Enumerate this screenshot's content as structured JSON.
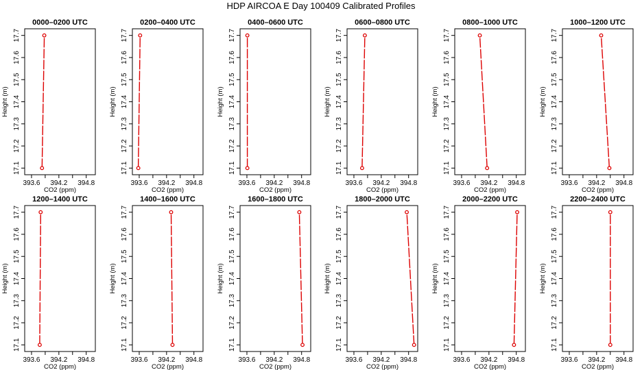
{
  "title": "HDP AIRCOA E  Day 100409  Calibrated Profiles",
  "colors": {
    "profile_line": "#dd0000",
    "marker": "#dd0000",
    "axis": "#000000",
    "background": "#ffffff"
  },
  "chart_data": [
    {
      "type": "line",
      "title": "0000–0200 UTC",
      "xlabel": "CO2 (ppm)",
      "ylabel": "Height (m)",
      "xlim": [
        393.45,
        395.0
      ],
      "ylim": [
        17.07,
        17.73
      ],
      "xticks": [
        393.6,
        393.9,
        394.2,
        394.5,
        394.8
      ],
      "xtick_labels": [
        "393.6",
        "",
        "394.2",
        "",
        "394.8"
      ],
      "yticks": [
        17.1,
        17.2,
        17.3,
        17.4,
        17.5,
        17.6,
        17.7
      ],
      "ytick_labels": [
        "17.1",
        "17.2",
        "17.3",
        "17.4",
        "17.5",
        "17.6",
        "17.7"
      ],
      "series": [
        {
          "x": [
            393.83,
            393.88
          ],
          "y": [
            17.1,
            17.7
          ]
        }
      ]
    },
    {
      "type": "line",
      "title": "0200–0400 UTC",
      "xlabel": "CO2 (ppm)",
      "ylabel": "Height (m)",
      "xlim": [
        393.45,
        395.0
      ],
      "ylim": [
        17.07,
        17.73
      ],
      "xticks": [
        393.6,
        393.9,
        394.2,
        394.5,
        394.8
      ],
      "xtick_labels": [
        "393.6",
        "",
        "394.2",
        "",
        "394.8"
      ],
      "yticks": [
        17.1,
        17.2,
        17.3,
        17.4,
        17.5,
        17.6,
        17.7
      ],
      "ytick_labels": [
        "17.1",
        "17.2",
        "17.3",
        "17.4",
        "17.5",
        "17.6",
        "17.7"
      ],
      "series": [
        {
          "x": [
            393.58,
            393.62
          ],
          "y": [
            17.1,
            17.7
          ]
        }
      ]
    },
    {
      "type": "line",
      "title": "0400–0600 UTC",
      "xlabel": "CO2 (ppm)",
      "ylabel": "Height (m)",
      "xlim": [
        393.45,
        395.0
      ],
      "ylim": [
        17.07,
        17.73
      ],
      "xticks": [
        393.6,
        393.9,
        394.2,
        394.5,
        394.8
      ],
      "xtick_labels": [
        "393.6",
        "",
        "394.2",
        "",
        "394.8"
      ],
      "yticks": [
        17.1,
        17.2,
        17.3,
        17.4,
        17.5,
        17.6,
        17.7
      ],
      "ytick_labels": [
        "17.1",
        "17.2",
        "17.3",
        "17.4",
        "17.5",
        "17.6",
        "17.7"
      ],
      "series": [
        {
          "x": [
            393.61,
            393.61
          ],
          "y": [
            17.1,
            17.7
          ]
        }
      ]
    },
    {
      "type": "line",
      "title": "0600–0800 UTC",
      "xlabel": "CO2 (ppm)",
      "ylabel": "Height (m)",
      "xlim": [
        393.45,
        395.0
      ],
      "ylim": [
        17.07,
        17.73
      ],
      "xticks": [
        393.6,
        393.9,
        394.2,
        394.5,
        394.8
      ],
      "xtick_labels": [
        "393.6",
        "",
        "394.2",
        "",
        "394.8"
      ],
      "yticks": [
        17.1,
        17.2,
        17.3,
        17.4,
        17.5,
        17.6,
        17.7
      ],
      "ytick_labels": [
        "17.1",
        "17.2",
        "17.3",
        "17.4",
        "17.5",
        "17.6",
        "17.7"
      ],
      "series": [
        {
          "x": [
            393.78,
            393.84
          ],
          "y": [
            17.1,
            17.7
          ]
        }
      ]
    },
    {
      "type": "line",
      "title": "0800–1000 UTC",
      "xlabel": "CO2 (ppm)",
      "ylabel": "Height (m)",
      "xlim": [
        393.45,
        395.0
      ],
      "ylim": [
        17.07,
        17.73
      ],
      "xticks": [
        393.6,
        393.9,
        394.2,
        394.5,
        394.8
      ],
      "xtick_labels": [
        "393.6",
        "",
        "394.2",
        "",
        "394.8"
      ],
      "yticks": [
        17.1,
        17.2,
        17.3,
        17.4,
        17.5,
        17.6,
        17.7
      ],
      "ytick_labels": [
        "17.1",
        "17.2",
        "17.3",
        "17.4",
        "17.5",
        "17.6",
        "17.7"
      ],
      "series": [
        {
          "x": [
            394.16,
            394.0
          ],
          "y": [
            17.1,
            17.7
          ]
        }
      ]
    },
    {
      "type": "line",
      "title": "1000–1200 UTC",
      "xlabel": "CO2 (ppm)",
      "ylabel": "Height (m)",
      "xlim": [
        393.45,
        395.0
      ],
      "ylim": [
        17.07,
        17.73
      ],
      "xticks": [
        393.6,
        393.9,
        394.2,
        394.5,
        394.8
      ],
      "xtick_labels": [
        "393.6",
        "",
        "394.2",
        "",
        "394.8"
      ],
      "yticks": [
        17.1,
        17.2,
        17.3,
        17.4,
        17.5,
        17.6,
        17.7
      ],
      "ytick_labels": [
        "17.1",
        "17.2",
        "17.3",
        "17.4",
        "17.5",
        "17.6",
        "17.7"
      ],
      "series": [
        {
          "x": [
            394.48,
            394.3
          ],
          "y": [
            17.1,
            17.7
          ]
        }
      ]
    },
    {
      "type": "line",
      "title": "1200–1400 UTC",
      "xlabel": "CO2 (ppm)",
      "ylabel": "Height (m)",
      "xlim": [
        393.45,
        395.0
      ],
      "ylim": [
        17.07,
        17.73
      ],
      "xticks": [
        393.6,
        393.9,
        394.2,
        394.5,
        394.8
      ],
      "xtick_labels": [
        "393.6",
        "",
        "394.2",
        "",
        "394.8"
      ],
      "yticks": [
        17.1,
        17.2,
        17.3,
        17.4,
        17.5,
        17.6,
        17.7
      ],
      "ytick_labels": [
        "17.1",
        "17.2",
        "17.3",
        "17.4",
        "17.5",
        "17.6",
        "17.7"
      ],
      "series": [
        {
          "x": [
            393.78,
            393.8
          ],
          "y": [
            17.1,
            17.7
          ]
        }
      ]
    },
    {
      "type": "line",
      "title": "1400–1600 UTC",
      "xlabel": "CO2 (ppm)",
      "ylabel": "Height (m)",
      "xlim": [
        393.45,
        395.0
      ],
      "ylim": [
        17.07,
        17.73
      ],
      "xticks": [
        393.6,
        393.9,
        394.2,
        394.5,
        394.8
      ],
      "xtick_labels": [
        "393.6",
        "",
        "394.2",
        "",
        "394.8"
      ],
      "yticks": [
        17.1,
        17.2,
        17.3,
        17.4,
        17.5,
        17.6,
        17.7
      ],
      "ytick_labels": [
        "17.1",
        "17.2",
        "17.3",
        "17.4",
        "17.5",
        "17.6",
        "17.7"
      ],
      "series": [
        {
          "x": [
            394.33,
            394.3
          ],
          "y": [
            17.1,
            17.7
          ]
        }
      ]
    },
    {
      "type": "line",
      "title": "1600–1800 UTC",
      "xlabel": "CO2 (ppm)",
      "ylabel": "Height (m)",
      "xlim": [
        393.45,
        395.0
      ],
      "ylim": [
        17.07,
        17.73
      ],
      "xticks": [
        393.6,
        393.9,
        394.2,
        394.5,
        394.8
      ],
      "xtick_labels": [
        "393.6",
        "",
        "394.2",
        "",
        "394.8"
      ],
      "yticks": [
        17.1,
        17.2,
        17.3,
        17.4,
        17.5,
        17.6,
        17.7
      ],
      "ytick_labels": [
        "17.1",
        "17.2",
        "17.3",
        "17.4",
        "17.5",
        "17.6",
        "17.7"
      ],
      "series": [
        {
          "x": [
            394.82,
            394.75
          ],
          "y": [
            17.1,
            17.7
          ]
        }
      ]
    },
    {
      "type": "line",
      "title": "1800–2000 UTC",
      "xlabel": "CO2 (ppm)",
      "ylabel": "Height (m)",
      "xlim": [
        393.45,
        395.0
      ],
      "ylim": [
        17.07,
        17.73
      ],
      "xticks": [
        393.6,
        393.9,
        394.2,
        394.5,
        394.8
      ],
      "xtick_labels": [
        "393.6",
        "",
        "394.2",
        "",
        "394.8"
      ],
      "yticks": [
        17.1,
        17.2,
        17.3,
        17.4,
        17.5,
        17.6,
        17.7
      ],
      "ytick_labels": [
        "17.1",
        "17.2",
        "17.3",
        "17.4",
        "17.5",
        "17.6",
        "17.7"
      ],
      "series": [
        {
          "x": [
            394.92,
            394.76
          ],
          "y": [
            17.1,
            17.7
          ]
        }
      ]
    },
    {
      "type": "line",
      "title": "2000–2200 UTC",
      "xlabel": "CO2 (ppm)",
      "ylabel": "Height (m)",
      "xlim": [
        393.45,
        395.0
      ],
      "ylim": [
        17.07,
        17.73
      ],
      "xticks": [
        393.6,
        393.9,
        394.2,
        394.5,
        394.8
      ],
      "xtick_labels": [
        "393.6",
        "",
        "394.2",
        "",
        "394.8"
      ],
      "yticks": [
        17.1,
        17.2,
        17.3,
        17.4,
        17.5,
        17.6,
        17.7
      ],
      "ytick_labels": [
        "17.1",
        "17.2",
        "17.3",
        "17.4",
        "17.5",
        "17.6",
        "17.7"
      ],
      "series": [
        {
          "x": [
            394.75,
            394.82
          ],
          "y": [
            17.1,
            17.7
          ]
        }
      ]
    },
    {
      "type": "line",
      "title": "2200–2400 UTC",
      "xlabel": "CO2 (ppm)",
      "ylabel": "Height (m)",
      "xlim": [
        393.45,
        395.0
      ],
      "ylim": [
        17.07,
        17.73
      ],
      "xticks": [
        393.6,
        393.9,
        394.2,
        394.5,
        394.8
      ],
      "xtick_labels": [
        "393.6",
        "",
        "394.2",
        "",
        "394.8"
      ],
      "yticks": [
        17.1,
        17.2,
        17.3,
        17.4,
        17.5,
        17.6,
        17.7
      ],
      "ytick_labels": [
        "17.1",
        "17.2",
        "17.3",
        "17.4",
        "17.5",
        "17.6",
        "17.7"
      ],
      "series": [
        {
          "x": [
            394.5,
            394.5
          ],
          "y": [
            17.1,
            17.7
          ]
        }
      ]
    }
  ]
}
